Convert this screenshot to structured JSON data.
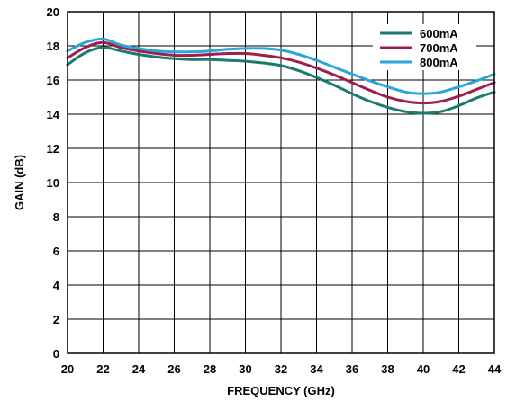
{
  "chart_data": {
    "type": "line",
    "title": "",
    "xlabel": "FREQUENCY (GHz)",
    "ylabel": "GAIN (dB)",
    "xlim": [
      20,
      44
    ],
    "ylim": [
      0,
      20
    ],
    "x_ticks": [
      20,
      22,
      24,
      26,
      28,
      30,
      32,
      34,
      36,
      38,
      40,
      42,
      44
    ],
    "y_ticks": [
      0,
      2,
      4,
      6,
      8,
      10,
      12,
      14,
      16,
      18,
      20
    ],
    "x_tick_labels": [
      "20",
      "22",
      "24",
      "26",
      "28",
      "30",
      "32",
      "34",
      "36",
      "38",
      "40",
      "42",
      "44"
    ],
    "y_tick_labels": [
      "0",
      "2",
      "4",
      "6",
      "8",
      "10",
      "12",
      "14",
      "16",
      "18",
      "20"
    ],
    "grid": true,
    "legend": "top-right",
    "x": [
      20,
      21,
      22,
      23,
      24,
      25,
      26,
      27,
      28,
      29,
      30,
      31,
      32,
      33,
      34,
      35,
      36,
      37,
      38,
      39,
      40,
      41,
      42,
      43,
      44
    ],
    "series": [
      {
        "name": "600mA",
        "color": "#1b7a6e",
        "values": [
          16.9,
          17.6,
          17.9,
          17.7,
          17.5,
          17.35,
          17.25,
          17.2,
          17.2,
          17.15,
          17.1,
          17.0,
          16.85,
          16.55,
          16.15,
          15.7,
          15.2,
          14.75,
          14.4,
          14.15,
          14.05,
          14.15,
          14.5,
          14.95,
          15.3
        ]
      },
      {
        "name": "700mA",
        "color": "#9e1f4e",
        "values": [
          17.3,
          17.9,
          18.2,
          17.9,
          17.7,
          17.55,
          17.45,
          17.45,
          17.5,
          17.55,
          17.55,
          17.45,
          17.3,
          17.05,
          16.7,
          16.3,
          15.85,
          15.4,
          15.0,
          14.75,
          14.65,
          14.75,
          15.05,
          15.45,
          15.85
        ]
      },
      {
        "name": "800mA",
        "color": "#2aa6d8",
        "values": [
          17.7,
          18.2,
          18.4,
          18.05,
          17.85,
          17.7,
          17.65,
          17.65,
          17.7,
          17.8,
          17.85,
          17.85,
          17.75,
          17.5,
          17.15,
          16.75,
          16.35,
          15.95,
          15.6,
          15.3,
          15.2,
          15.3,
          15.6,
          15.95,
          16.35
        ]
      }
    ]
  }
}
